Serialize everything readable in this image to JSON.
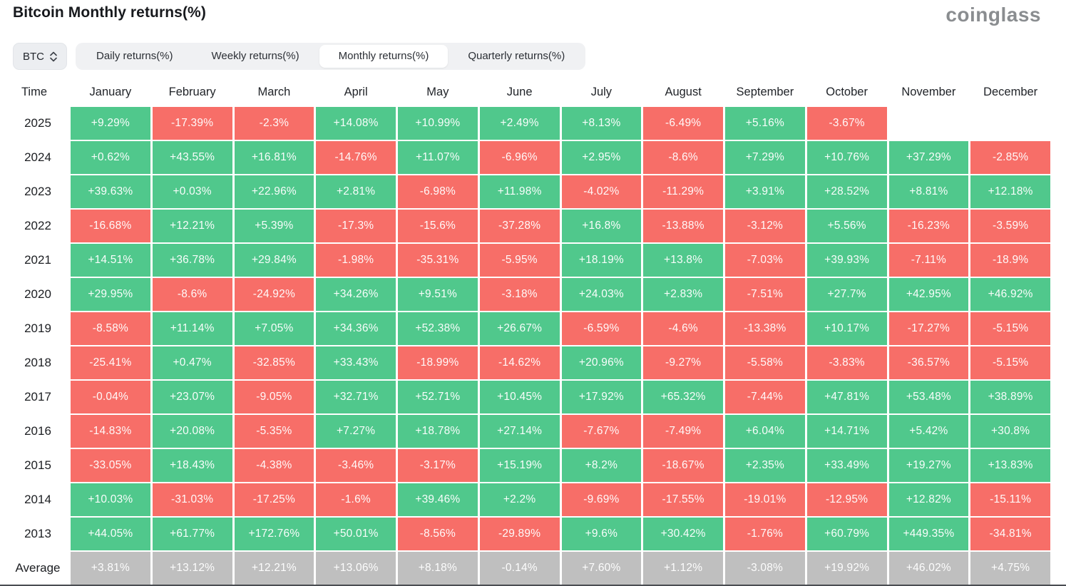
{
  "page": {
    "title": "Bitcoin Monthly returns(%)",
    "brand": "coinglass"
  },
  "controls": {
    "symbol_select": {
      "value": "BTC"
    },
    "tabs": [
      {
        "label": "Daily returns(%)",
        "active": false
      },
      {
        "label": "Weekly returns(%)",
        "active": false
      },
      {
        "label": "Monthly returns(%)",
        "active": true
      },
      {
        "label": "Quarterly returns(%)",
        "active": false
      }
    ]
  },
  "colors": {
    "positive": "#50c88c",
    "negative": "#f76e68",
    "average": "#bfbfbf"
  },
  "table": {
    "corner_header": "Time",
    "month_headers": [
      "January",
      "February",
      "March",
      "April",
      "May",
      "June",
      "July",
      "August",
      "September",
      "October",
      "November",
      "December"
    ],
    "rows": [
      {
        "label": "2025",
        "is_average": false,
        "values": [
          "+9.29%",
          "-17.39%",
          "-2.3%",
          "+14.08%",
          "+10.99%",
          "+2.49%",
          "+8.13%",
          "-6.49%",
          "+5.16%",
          "-3.67%",
          null,
          null
        ]
      },
      {
        "label": "2024",
        "is_average": false,
        "values": [
          "+0.62%",
          "+43.55%",
          "+16.81%",
          "-14.76%",
          "+11.07%",
          "-6.96%",
          "+2.95%",
          "-8.6%",
          "+7.29%",
          "+10.76%",
          "+37.29%",
          "-2.85%"
        ]
      },
      {
        "label": "2023",
        "is_average": false,
        "values": [
          "+39.63%",
          "+0.03%",
          "+22.96%",
          "+2.81%",
          "-6.98%",
          "+11.98%",
          "-4.02%",
          "-11.29%",
          "+3.91%",
          "+28.52%",
          "+8.81%",
          "+12.18%"
        ]
      },
      {
        "label": "2022",
        "is_average": false,
        "values": [
          "-16.68%",
          "+12.21%",
          "+5.39%",
          "-17.3%",
          "-15.6%",
          "-37.28%",
          "+16.8%",
          "-13.88%",
          "-3.12%",
          "+5.56%",
          "-16.23%",
          "-3.59%"
        ]
      },
      {
        "label": "2021",
        "is_average": false,
        "values": [
          "+14.51%",
          "+36.78%",
          "+29.84%",
          "-1.98%",
          "-35.31%",
          "-5.95%",
          "+18.19%",
          "+13.8%",
          "-7.03%",
          "+39.93%",
          "-7.11%",
          "-18.9%"
        ]
      },
      {
        "label": "2020",
        "is_average": false,
        "values": [
          "+29.95%",
          "-8.6%",
          "-24.92%",
          "+34.26%",
          "+9.51%",
          "-3.18%",
          "+24.03%",
          "+2.83%",
          "-7.51%",
          "+27.7%",
          "+42.95%",
          "+46.92%"
        ]
      },
      {
        "label": "2019",
        "is_average": false,
        "values": [
          "-8.58%",
          "+11.14%",
          "+7.05%",
          "+34.36%",
          "+52.38%",
          "+26.67%",
          "-6.59%",
          "-4.6%",
          "-13.38%",
          "+10.17%",
          "-17.27%",
          "-5.15%"
        ]
      },
      {
        "label": "2018",
        "is_average": false,
        "values": [
          "-25.41%",
          "+0.47%",
          "-32.85%",
          "+33.43%",
          "-18.99%",
          "-14.62%",
          "+20.96%",
          "-9.27%",
          "-5.58%",
          "-3.83%",
          "-36.57%",
          "-5.15%"
        ]
      },
      {
        "label": "2017",
        "is_average": false,
        "values": [
          "-0.04%",
          "+23.07%",
          "-9.05%",
          "+32.71%",
          "+52.71%",
          "+10.45%",
          "+17.92%",
          "+65.32%",
          "-7.44%",
          "+47.81%",
          "+53.48%",
          "+38.89%"
        ]
      },
      {
        "label": "2016",
        "is_average": false,
        "values": [
          "-14.83%",
          "+20.08%",
          "-5.35%",
          "+7.27%",
          "+18.78%",
          "+27.14%",
          "-7.67%",
          "-7.49%",
          "+6.04%",
          "+14.71%",
          "+5.42%",
          "+30.8%"
        ]
      },
      {
        "label": "2015",
        "is_average": false,
        "values": [
          "-33.05%",
          "+18.43%",
          "-4.38%",
          "-3.46%",
          "-3.17%",
          "+15.19%",
          "+8.2%",
          "-18.67%",
          "+2.35%",
          "+33.49%",
          "+19.27%",
          "+13.83%"
        ]
      },
      {
        "label": "2014",
        "is_average": false,
        "values": [
          "+10.03%",
          "-31.03%",
          "-17.25%",
          "-1.6%",
          "+39.46%",
          "+2.2%",
          "-9.69%",
          "-17.55%",
          "-19.01%",
          "-12.95%",
          "+12.82%",
          "-15.11%"
        ]
      },
      {
        "label": "2013",
        "is_average": false,
        "values": [
          "+44.05%",
          "+61.77%",
          "+172.76%",
          "+50.01%",
          "-8.56%",
          "-29.89%",
          "+9.6%",
          "+30.42%",
          "-1.76%",
          "+60.79%",
          "+449.35%",
          "-34.81%"
        ]
      },
      {
        "label": "Average",
        "is_average": true,
        "values": [
          "+3.81%",
          "+13.12%",
          "+12.21%",
          "+13.06%",
          "+8.18%",
          "-0.14%",
          "+7.60%",
          "+1.12%",
          "-3.08%",
          "+19.92%",
          "+46.02%",
          "+4.75%"
        ]
      }
    ]
  },
  "chart_data": {
    "type": "heatmap",
    "title": "Bitcoin Monthly returns(%)",
    "x": [
      "January",
      "February",
      "March",
      "April",
      "May",
      "June",
      "July",
      "August",
      "September",
      "October",
      "November",
      "December"
    ],
    "series": [
      {
        "name": "2025",
        "values": [
          9.29,
          -17.39,
          -2.3,
          14.08,
          10.99,
          2.49,
          8.13,
          -6.49,
          5.16,
          -3.67,
          null,
          null
        ]
      },
      {
        "name": "2024",
        "values": [
          0.62,
          43.55,
          16.81,
          -14.76,
          11.07,
          -6.96,
          2.95,
          -8.6,
          7.29,
          10.76,
          37.29,
          -2.85
        ]
      },
      {
        "name": "2023",
        "values": [
          39.63,
          0.03,
          22.96,
          2.81,
          -6.98,
          11.98,
          -4.02,
          -11.29,
          3.91,
          28.52,
          8.81,
          12.18
        ]
      },
      {
        "name": "2022",
        "values": [
          -16.68,
          12.21,
          5.39,
          -17.3,
          -15.6,
          -37.28,
          16.8,
          -13.88,
          -3.12,
          5.56,
          -16.23,
          -3.59
        ]
      },
      {
        "name": "2021",
        "values": [
          14.51,
          36.78,
          29.84,
          -1.98,
          -35.31,
          -5.95,
          18.19,
          13.8,
          -7.03,
          39.93,
          -7.11,
          -18.9
        ]
      },
      {
        "name": "2020",
        "values": [
          29.95,
          -8.6,
          -24.92,
          34.26,
          9.51,
          -3.18,
          24.03,
          2.83,
          -7.51,
          27.7,
          42.95,
          46.92
        ]
      },
      {
        "name": "2019",
        "values": [
          -8.58,
          11.14,
          7.05,
          34.36,
          52.38,
          26.67,
          -6.59,
          -4.6,
          -13.38,
          10.17,
          -17.27,
          -5.15
        ]
      },
      {
        "name": "2018",
        "values": [
          -25.41,
          0.47,
          -32.85,
          33.43,
          -18.99,
          -14.62,
          20.96,
          -9.27,
          -5.58,
          -3.83,
          -36.57,
          -5.15
        ]
      },
      {
        "name": "2017",
        "values": [
          -0.04,
          23.07,
          -9.05,
          32.71,
          52.71,
          10.45,
          17.92,
          65.32,
          -7.44,
          47.81,
          53.48,
          38.89
        ]
      },
      {
        "name": "2016",
        "values": [
          -14.83,
          20.08,
          -5.35,
          7.27,
          18.78,
          27.14,
          -7.67,
          -7.49,
          6.04,
          14.71,
          5.42,
          30.8
        ]
      },
      {
        "name": "2015",
        "values": [
          -33.05,
          18.43,
          -4.38,
          -3.46,
          -3.17,
          15.19,
          8.2,
          -18.67,
          2.35,
          33.49,
          19.27,
          13.83
        ]
      },
      {
        "name": "2014",
        "values": [
          10.03,
          -31.03,
          -17.25,
          -1.6,
          39.46,
          2.2,
          -9.69,
          -17.55,
          -19.01,
          -12.95,
          12.82,
          -15.11
        ]
      },
      {
        "name": "2013",
        "values": [
          44.05,
          61.77,
          172.76,
          50.01,
          -8.56,
          -29.89,
          9.6,
          30.42,
          -1.76,
          60.79,
          449.35,
          -34.81
        ]
      },
      {
        "name": "Average",
        "values": [
          3.81,
          13.12,
          12.21,
          13.06,
          8.18,
          -0.14,
          7.6,
          1.12,
          -3.08,
          19.92,
          46.02,
          4.75
        ]
      }
    ],
    "legend": "none",
    "color_coding": {
      "positive": "green",
      "negative": "red",
      "average_row": "gray"
    }
  }
}
